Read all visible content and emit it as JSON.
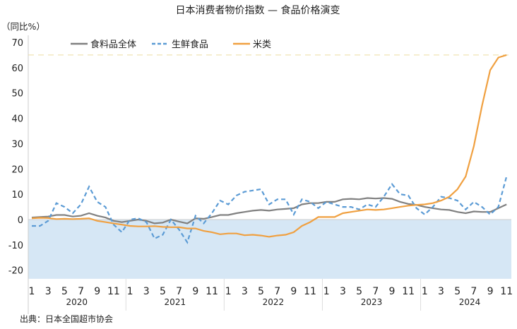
{
  "chart_data": {
    "type": "line",
    "title": "日本消费者物价指数 — 食品价格演变",
    "ylabel": "（同比%）",
    "ylim": [
      -23.4,
      70
    ],
    "yticks": [
      70,
      60,
      50,
      40,
      30,
      20,
      10,
      0,
      -10,
      -20
    ],
    "years": [
      "2020",
      "2021",
      "2022",
      "2023",
      "2024"
    ],
    "month_ticks": [
      "1",
      "3",
      "5",
      "7",
      "9",
      "11"
    ],
    "reference_line": 65,
    "source": "出典：日本全国超市协会",
    "series": [
      {
        "name": "食料品全体",
        "color": "#808080",
        "style": "solid",
        "values": [
          0.8,
          1,
          1.2,
          1.8,
          1.8,
          1.2,
          1.5,
          2.5,
          1.5,
          0.8,
          -0.5,
          -1,
          -0.5,
          0,
          -0.5,
          -1.5,
          -1.2,
          0,
          -0.8,
          -1.5,
          0.5,
          0.3,
          1,
          1.8,
          1.8,
          2.5,
          3,
          3.5,
          3.8,
          3.5,
          4,
          4.2,
          4.5,
          6,
          6.5,
          6.5,
          7,
          7,
          8,
          8.2,
          8,
          8.5,
          8.3,
          8.5,
          8.2,
          7,
          6.2,
          5.8,
          5,
          4.5,
          4,
          3.8,
          3,
          2.5,
          3.2,
          3,
          3,
          4.5,
          6
        ]
      },
      {
        "name": "生鲜食品",
        "color": "#5b9bd5",
        "style": "dashed",
        "values": [
          -2.5,
          -2.5,
          -0.5,
          6.5,
          5,
          2.5,
          6,
          13,
          7,
          5,
          -2,
          -5,
          0,
          0.5,
          -1,
          -7.5,
          -6,
          0,
          -4,
          -9,
          1.5,
          -1.5,
          2.5,
          7.5,
          6,
          9.5,
          11,
          11.5,
          12,
          6,
          8,
          8,
          2,
          8,
          7,
          4.5,
          7,
          6,
          5,
          5,
          4,
          6,
          5,
          9,
          14,
          10,
          9.5,
          4.5,
          2,
          5,
          9,
          8.5,
          7.5,
          4,
          7,
          5,
          2,
          5,
          17
        ]
      },
      {
        "name": "米类",
        "color": "#f0a040",
        "style": "solid",
        "values": [
          0.5,
          0.7,
          0.6,
          0.2,
          0.3,
          0.2,
          0.3,
          0.5,
          -0.5,
          -1,
          -1.5,
          -2,
          -2.5,
          -2.7,
          -2.7,
          -2.6,
          -2.9,
          -3,
          -3,
          -3.5,
          -3.5,
          -4.5,
          -5,
          -5.8,
          -5.5,
          -5.5,
          -6.2,
          -6,
          -6.3,
          -6.8,
          -6.3,
          -6,
          -5,
          -2.5,
          -1,
          1,
          1,
          1,
          2.5,
          3,
          3.5,
          4,
          3.8,
          4,
          4.5,
          5,
          5.5,
          5.8,
          6,
          6.5,
          7.5,
          9,
          12,
          17,
          29,
          45,
          59,
          64,
          65
        ]
      }
    ]
  }
}
